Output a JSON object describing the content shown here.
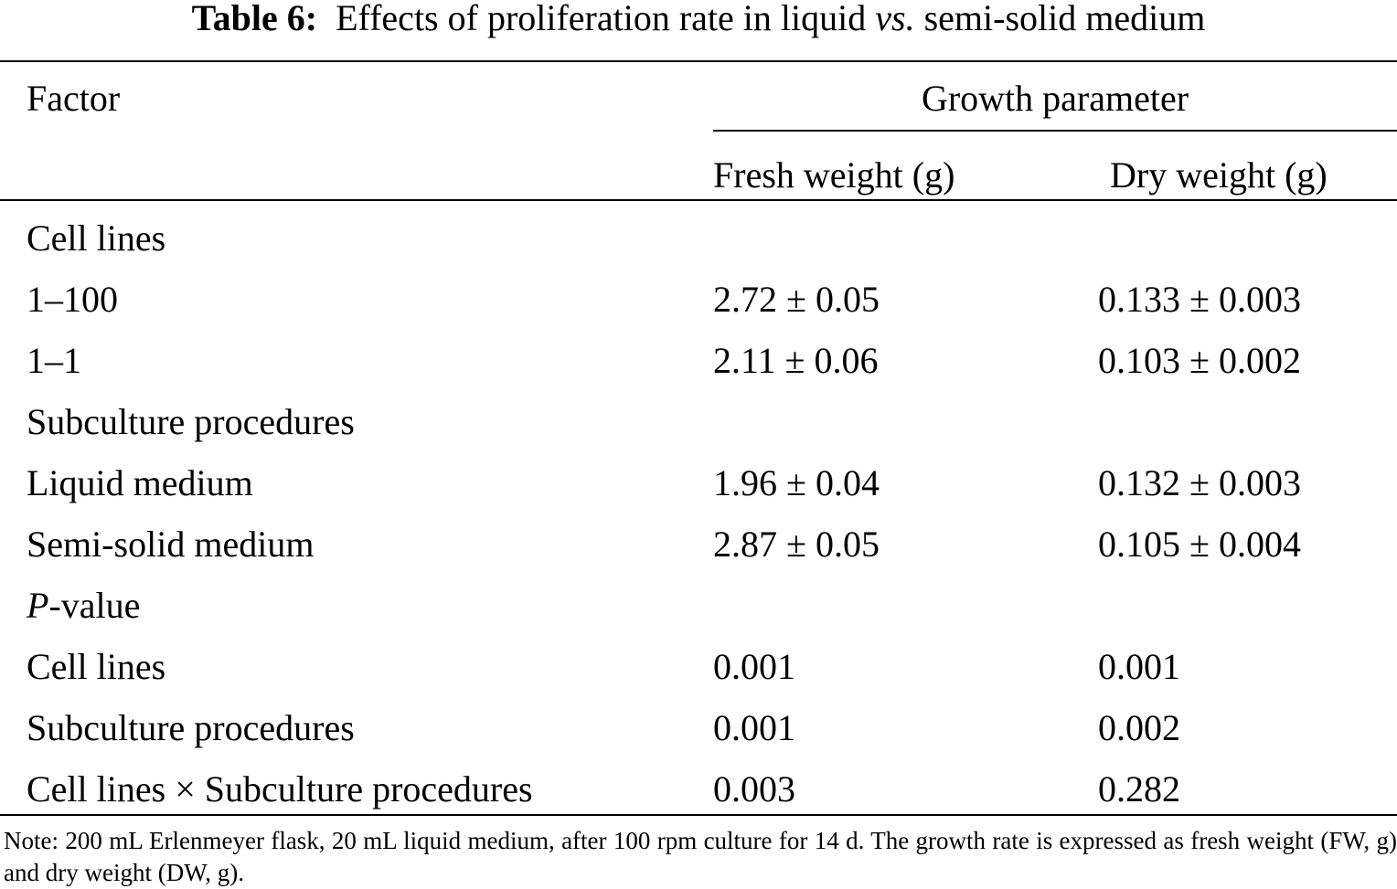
{
  "caption": {
    "label": "Table 6:",
    "text_before": "Effects of proliferation rate in liquid",
    "text_italic": "vs.",
    "text_after": "semi-solid medium"
  },
  "header": {
    "factor": "Factor",
    "group": "Growth parameter",
    "fresh": "Fresh weight (g)",
    "dry": "Dry weight (g)"
  },
  "rows": [
    {
      "factor": "Cell lines",
      "fresh": "",
      "dry": ""
    },
    {
      "factor": "1–100",
      "fresh": "2.72 ± 0.05",
      "dry": "0.133 ± 0.003"
    },
    {
      "factor": "1–1",
      "fresh": "2.11 ± 0.06",
      "dry": "0.103 ± 0.002"
    },
    {
      "factor": "Subculture procedures",
      "fresh": "",
      "dry": ""
    },
    {
      "factor": "Liquid medium",
      "fresh": "1.96 ± 0.04",
      "dry": "0.132 ± 0.003"
    },
    {
      "factor": "Semi-solid medium",
      "fresh": "2.87 ± 0.05",
      "dry": "0.105 ± 0.004"
    },
    {
      "factor_italic": "P",
      "factor": "-value",
      "fresh": "",
      "dry": ""
    },
    {
      "factor": "Cell lines",
      "fresh": "0.001",
      "dry": "0.001"
    },
    {
      "factor": "Subculture procedures",
      "fresh": "0.001",
      "dry": "0.002"
    },
    {
      "factor": "Cell lines × Subculture procedures",
      "fresh": "0.003",
      "dry": "0.282"
    }
  ],
  "note": "Note: 200 mL Erlenmeyer flask, 20 mL liquid medium, after 100 rpm culture for 14 d. The growth rate is expressed as fresh weight (FW, g) and dry weight (DW, g)."
}
